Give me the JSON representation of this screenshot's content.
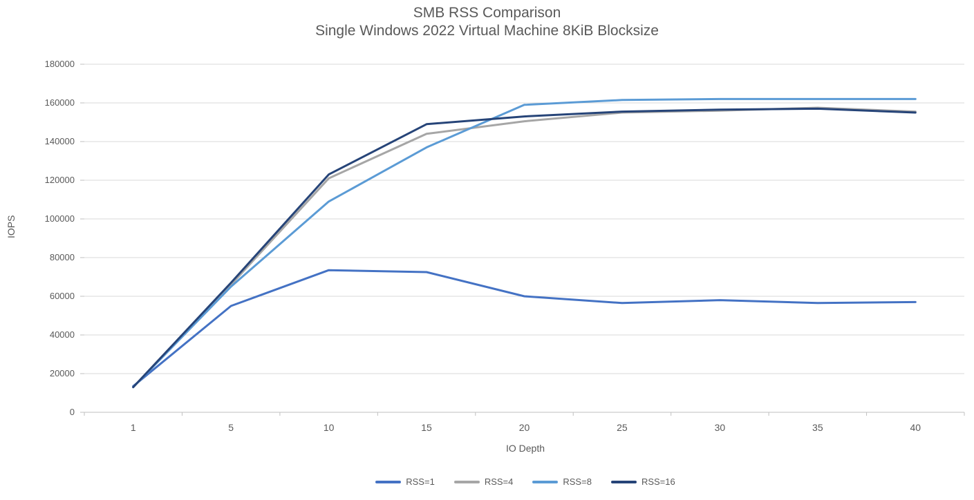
{
  "chart": {
    "title": "SMB RSS Comparison",
    "subtitle": "Single Windows 2022 Virtual Machine 8KiB Blocksize",
    "y_axis_label": "IOPS",
    "x_axis_label": "IO Depth"
  },
  "chart_data": {
    "type": "line",
    "title": "SMB RSS Comparison",
    "subtitle": "Single Windows 2022 Virtual Machine 8KiB Blocksize",
    "xlabel": "IO Depth",
    "ylabel": "IOPS",
    "categories": [
      1,
      5,
      10,
      15,
      20,
      25,
      30,
      35,
      40
    ],
    "ylim": [
      0,
      180000
    ],
    "ytick_interval": 20000,
    "ytick_labels": [
      "0",
      "20000",
      "40000",
      "60000",
      "80000",
      "100000",
      "120000",
      "140000",
      "160000",
      "180000"
    ],
    "grid": true,
    "legend_position": "bottom",
    "series": [
      {
        "name": "RSS=1",
        "color": "#4472C4",
        "values": [
          13500,
          55000,
          73500,
          72500,
          60000,
          56500,
          58000,
          56500,
          57000
        ]
      },
      {
        "name": "RSS=4",
        "color": "#A6A6A6",
        "values": [
          13000,
          66000,
          121000,
          144000,
          150500,
          155000,
          156000,
          157500,
          155500
        ]
      },
      {
        "name": "RSS=8",
        "color": "#5B9BD5",
        "values": [
          13000,
          65000,
          109000,
          137000,
          159000,
          161500,
          162000,
          162000,
          162000
        ]
      },
      {
        "name": "RSS=16",
        "color": "#264478",
        "values": [
          13000,
          67000,
          123000,
          149000,
          153000,
          155500,
          156500,
          157000,
          155000
        ]
      }
    ],
    "colors": {
      "gridline": "#D9D9D9",
      "axis_line": "#BFBFBF",
      "tick": "#BFBFBF",
      "text": "#595959"
    }
  }
}
